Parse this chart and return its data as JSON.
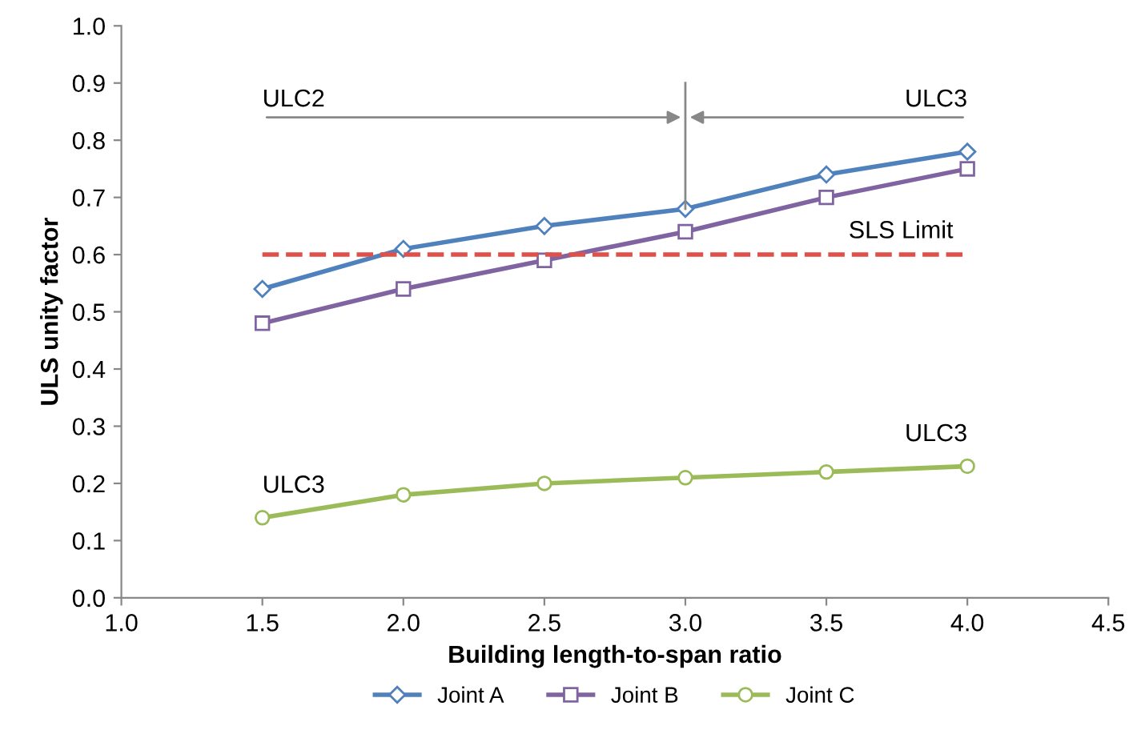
{
  "chart_data": {
    "type": "line",
    "xlabel": "Building length-to-span ratio",
    "ylabel": "ULS unity factor",
    "x": [
      1.5,
      2.0,
      2.5,
      3.0,
      3.5,
      4.0
    ],
    "series": [
      {
        "name": "Joint A",
        "color": "#4f81bd",
        "marker": "diamond",
        "values": [
          0.54,
          0.61,
          0.65,
          0.68,
          0.74,
          0.78
        ]
      },
      {
        "name": "Joint B",
        "color": "#8064a2",
        "marker": "square",
        "values": [
          0.48,
          0.54,
          0.59,
          0.64,
          0.7,
          0.75
        ]
      },
      {
        "name": "Joint C",
        "color": "#9bbb59",
        "marker": "circle",
        "values": [
          0.14,
          0.18,
          0.2,
          0.21,
          0.22,
          0.23
        ]
      }
    ],
    "xlim": [
      1.0,
      4.5
    ],
    "xticks": [
      {
        "value": 1.0,
        "label": "1.0"
      },
      {
        "value": 1.5,
        "label": "1.5"
      },
      {
        "value": 2.0,
        "label": "2.0"
      },
      {
        "value": 2.5,
        "label": "2.5"
      },
      {
        "value": 3.0,
        "label": "3.0"
      },
      {
        "value": 3.5,
        "label": "3.5"
      },
      {
        "value": 4.0,
        "label": "4.0"
      },
      {
        "value": 4.5,
        "label": "4.5"
      }
    ],
    "ylim": [
      0.0,
      1.0
    ],
    "yticks": [
      {
        "value": 0.0,
        "label": "0.0"
      },
      {
        "value": 0.1,
        "label": "0.1"
      },
      {
        "value": 0.2,
        "label": "0.2"
      },
      {
        "value": 0.3,
        "label": "0.3"
      },
      {
        "value": 0.4,
        "label": "0.4"
      },
      {
        "value": 0.5,
        "label": "0.5"
      },
      {
        "value": 0.6,
        "label": "0.6"
      },
      {
        "value": 0.7,
        "label": "0.7"
      },
      {
        "value": 0.8,
        "label": "0.8"
      },
      {
        "value": 0.9,
        "label": "0.9"
      },
      {
        "value": 1.0,
        "label": "1.0"
      }
    ],
    "ref_lines": [
      {
        "axis": "y",
        "value": 0.6,
        "label": "SLS Limit",
        "color": "#e0504a",
        "line_style": "dashed"
      }
    ],
    "annotations": [
      "ULC2",
      "ULC3",
      {
        "text": "ULC3",
        "x": 1.5,
        "y": 0.14
      },
      {
        "text": "ULC3",
        "x": 4.0,
        "y": 0.23
      }
    ],
    "grid": false,
    "legend": "bottom",
    "line_style": "solid"
  }
}
